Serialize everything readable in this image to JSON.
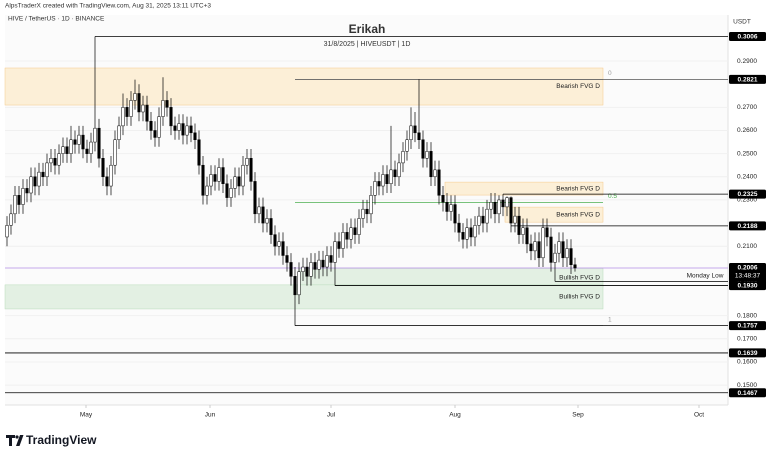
{
  "header": {
    "credit": "AlpsTraderX created with TradingView.com, Aug 31, 2025 13:11 UTC+3",
    "symbol": "HIVE / TetherUS · 1D · BINANCE",
    "currency": "USDT"
  },
  "footer": {
    "brand": "TradingView"
  },
  "chart_data": {
    "type": "candlestick",
    "title": "Erikah",
    "subtitle": "31/8/2025 | HIVEUSDT | 1D",
    "annotation": "Monday Low",
    "up_color": "#ffffff",
    "down_color": "#000000",
    "outline": "#000000",
    "categories": [
      null,
      null,
      null,
      null,
      null,
      null,
      null,
      null,
      null,
      null,
      null,
      null,
      null,
      null,
      null,
      null,
      null,
      null,
      null,
      null,
      null,
      null,
      null,
      null,
      null,
      null,
      null,
      null,
      null,
      null,
      null,
      null,
      null,
      null,
      null,
      null,
      null,
      null,
      null,
      null,
      null,
      null,
      null,
      null,
      null,
      null,
      null,
      null,
      null,
      null,
      null,
      null,
      null,
      null,
      null,
      null,
      null,
      null,
      null,
      null,
      null,
      null,
      null,
      null,
      null,
      null,
      null,
      null,
      null,
      null,
      null,
      null,
      null,
      null,
      null,
      null,
      null,
      null,
      null,
      null,
      null,
      null,
      null,
      null,
      null,
      null,
      null,
      null,
      null,
      null,
      null,
      null,
      null,
      null,
      null,
      null,
      null,
      null,
      null,
      null,
      null,
      null,
      null,
      null,
      null,
      null,
      null,
      null,
      null,
      null,
      null,
      null,
      null,
      null,
      null,
      null,
      null,
      null,
      null,
      null,
      null,
      null,
      null,
      null,
      null,
      null,
      null,
      null,
      null,
      null,
      null,
      null,
      null,
      null,
      null,
      null,
      null,
      null,
      null,
      null,
      null,
      null,
      null
    ],
    "open": [
      0.214,
      0.219,
      0.224,
      0.232,
      0.228,
      0.235,
      0.233,
      0.24,
      0.236,
      0.242,
      0.24,
      0.246,
      0.248,
      0.245,
      0.25,
      0.253,
      0.25,
      0.256,
      0.254,
      0.258,
      0.252,
      0.25,
      0.255,
      0.261,
      0.248,
      0.24,
      0.236,
      0.245,
      0.256,
      0.262,
      0.27,
      0.266,
      0.273,
      0.276,
      0.268,
      0.271,
      0.264,
      0.26,
      0.257,
      0.266,
      0.273,
      0.27,
      0.262,
      0.26,
      0.263,
      0.258,
      0.262,
      0.259,
      0.256,
      0.245,
      0.232,
      0.236,
      0.241,
      0.238,
      0.244,
      0.237,
      0.231,
      0.235,
      0.24,
      0.236,
      0.245,
      0.248,
      0.238,
      0.224,
      0.227,
      0.22,
      0.222,
      0.215,
      0.21,
      0.212,
      0.206,
      0.203,
      0.197,
      0.189,
      0.199,
      0.201,
      0.197,
      0.203,
      0.2,
      0.204,
      0.201,
      0.206,
      0.203,
      0.212,
      0.209,
      0.216,
      0.213,
      0.218,
      0.215,
      0.222,
      0.226,
      0.224,
      0.232,
      0.238,
      0.236,
      0.241,
      0.237,
      0.243,
      0.24,
      0.246,
      0.251,
      0.256,
      0.262,
      0.259,
      0.256,
      0.248,
      0.251,
      0.24,
      0.243,
      0.232,
      0.229,
      0.225,
      0.228,
      0.22,
      0.216,
      0.213,
      0.218,
      0.214,
      0.219,
      0.223,
      0.22,
      0.226,
      0.229,
      0.224,
      0.23,
      0.227,
      0.231,
      0.22,
      0.223,
      0.215,
      0.218,
      0.211,
      0.208,
      0.212,
      0.205,
      0.218,
      0.214,
      0.203,
      0.207,
      0.212,
      0.205,
      0.209,
      0.202
    ],
    "high": [
      0.223,
      0.228,
      0.236,
      0.236,
      0.239,
      0.239,
      0.244,
      0.244,
      0.246,
      0.246,
      0.25,
      0.252,
      0.252,
      0.254,
      0.257,
      0.257,
      0.262,
      0.26,
      0.262,
      0.262,
      0.256,
      0.259,
      0.3006,
      0.265,
      0.252,
      0.244,
      0.249,
      0.26,
      0.266,
      0.276,
      0.274,
      0.277,
      0.282,
      0.28,
      0.275,
      0.275,
      0.268,
      0.264,
      0.27,
      0.283,
      0.277,
      0.274,
      0.266,
      0.267,
      0.267,
      0.266,
      0.266,
      0.263,
      0.26,
      0.249,
      0.24,
      0.245,
      0.245,
      0.248,
      0.248,
      0.241,
      0.239,
      0.244,
      0.244,
      0.249,
      0.252,
      0.252,
      0.242,
      0.231,
      0.231,
      0.226,
      0.226,
      0.219,
      0.216,
      0.216,
      0.21,
      0.207,
      0.201,
      0.203,
      0.205,
      0.205,
      0.207,
      0.207,
      0.208,
      0.208,
      0.21,
      0.21,
      0.216,
      0.216,
      0.22,
      0.22,
      0.222,
      0.222,
      0.226,
      0.23,
      0.23,
      0.236,
      0.242,
      0.242,
      0.245,
      0.245,
      0.262,
      0.247,
      0.25,
      0.255,
      0.26,
      0.27,
      0.268,
      0.2821,
      0.26,
      0.255,
      0.255,
      0.247,
      0.247,
      0.236,
      0.233,
      0.232,
      0.232,
      0.224,
      0.22,
      0.222,
      0.222,
      0.223,
      0.227,
      0.227,
      0.23,
      0.233,
      0.233,
      0.232,
      0.2325,
      0.2315,
      0.2315,
      0.227,
      0.227,
      0.222,
      0.222,
      0.215,
      0.216,
      0.216,
      0.222,
      0.222,
      0.218,
      0.211,
      0.216,
      0.216,
      0.213,
      0.213,
      0.205
    ],
    "low": [
      0.21,
      0.215,
      0.22,
      0.224,
      0.224,
      0.229,
      0.229,
      0.232,
      0.232,
      0.236,
      0.236,
      0.242,
      0.241,
      0.241,
      0.246,
      0.246,
      0.246,
      0.25,
      0.25,
      0.248,
      0.246,
      0.246,
      0.251,
      0.244,
      0.236,
      0.232,
      0.232,
      0.241,
      0.252,
      0.258,
      0.262,
      0.262,
      0.269,
      0.264,
      0.264,
      0.26,
      0.256,
      0.253,
      0.253,
      0.262,
      0.266,
      0.258,
      0.256,
      0.256,
      0.254,
      0.254,
      0.255,
      0.252,
      0.241,
      0.228,
      0.228,
      0.232,
      0.234,
      0.234,
      0.233,
      0.227,
      0.227,
      0.231,
      0.232,
      0.232,
      0.241,
      0.234,
      0.22,
      0.22,
      0.216,
      0.216,
      0.211,
      0.206,
      0.206,
      0.202,
      0.199,
      0.193,
      0.1757,
      0.185,
      0.195,
      0.193,
      0.193,
      0.196,
      0.196,
      0.197,
      0.197,
      0.199,
      0.193,
      0.205,
      0.205,
      0.209,
      0.209,
      0.211,
      0.211,
      0.218,
      0.22,
      0.22,
      0.228,
      0.232,
      0.232,
      0.233,
      0.233,
      0.236,
      0.236,
      0.242,
      0.247,
      0.252,
      0.255,
      0.252,
      0.244,
      0.244,
      0.236,
      0.236,
      0.228,
      0.225,
      0.221,
      0.221,
      0.216,
      0.212,
      0.209,
      0.209,
      0.21,
      0.21,
      0.215,
      0.216,
      0.216,
      0.222,
      0.22,
      0.22,
      0.223,
      0.223,
      0.216,
      0.216,
      0.211,
      0.211,
      0.207,
      0.204,
      0.204,
      0.201,
      0.201,
      0.21,
      0.199,
      0.1948,
      0.203,
      0.201,
      0.201,
      0.198,
      0.199
    ],
    "close": [
      0.219,
      0.224,
      0.232,
      0.228,
      0.235,
      0.233,
      0.24,
      0.236,
      0.242,
      0.24,
      0.246,
      0.248,
      0.245,
      0.25,
      0.253,
      0.25,
      0.256,
      0.254,
      0.258,
      0.252,
      0.25,
      0.255,
      0.261,
      0.248,
      0.24,
      0.236,
      0.245,
      0.256,
      0.262,
      0.27,
      0.266,
      0.273,
      0.276,
      0.268,
      0.271,
      0.264,
      0.26,
      0.257,
      0.266,
      0.273,
      0.27,
      0.262,
      0.26,
      0.263,
      0.258,
      0.262,
      0.259,
      0.256,
      0.245,
      0.232,
      0.236,
      0.241,
      0.238,
      0.244,
      0.237,
      0.231,
      0.235,
      0.24,
      0.236,
      0.245,
      0.248,
      0.238,
      0.224,
      0.227,
      0.22,
      0.222,
      0.215,
      0.21,
      0.212,
      0.206,
      0.203,
      0.197,
      0.189,
      0.199,
      0.201,
      0.197,
      0.203,
      0.2,
      0.204,
      0.201,
      0.206,
      0.203,
      0.212,
      0.209,
      0.216,
      0.213,
      0.218,
      0.215,
      0.222,
      0.226,
      0.224,
      0.232,
      0.238,
      0.236,
      0.241,
      0.237,
      0.243,
      0.24,
      0.246,
      0.251,
      0.256,
      0.262,
      0.259,
      0.256,
      0.248,
      0.251,
      0.24,
      0.243,
      0.232,
      0.229,
      0.225,
      0.228,
      0.22,
      0.216,
      0.213,
      0.218,
      0.214,
      0.219,
      0.223,
      0.22,
      0.226,
      0.229,
      0.224,
      0.23,
      0.227,
      0.231,
      0.22,
      0.223,
      0.215,
      0.218,
      0.211,
      0.208,
      0.212,
      0.205,
      0.218,
      0.214,
      0.203,
      0.207,
      0.212,
      0.205,
      0.209,
      0.202,
      0.2006
    ],
    "xlim": [
      -0.5,
      180.25
    ],
    "xticks": [
      {
        "value": 19.75,
        "label": "May"
      },
      {
        "value": 50.75,
        "label": "Jun"
      },
      {
        "value": 81,
        "label": "Jul"
      },
      {
        "value": 112,
        "label": "Aug"
      },
      {
        "value": 142.75,
        "label": "Sep"
      },
      {
        "value": 173,
        "label": "Oct"
      }
    ],
    "ylim": [
      0.1414,
      0.3099
    ],
    "yticks": [
      {
        "value": 0.29,
        "label": "0.2900"
      },
      {
        "value": 0.27,
        "label": "0.2700"
      },
      {
        "value": 0.26,
        "label": "0.2600"
      },
      {
        "value": 0.25,
        "label": "0.2500"
      },
      {
        "value": 0.24,
        "label": "0.2400"
      },
      {
        "value": 0.23,
        "label": "0.2300"
      },
      {
        "value": 0.21,
        "label": "0.2100"
      },
      {
        "value": 0.18,
        "label": "0.1800"
      },
      {
        "value": 0.17,
        "label": "0.1700"
      },
      {
        "value": 0.16,
        "label": "0.1600"
      },
      {
        "value": 0.15,
        "label": "0.1500"
      }
    ],
    "grid": true,
    "zones": [
      {
        "name": "Bearish FVG D",
        "top": 0.287,
        "bottom": 0.271,
        "start": -0.5,
        "end": 149,
        "color": "#fcefd7",
        "border": "#f5c98a"
      },
      {
        "name": "Bearish FVG D",
        "top": 0.2377,
        "bottom": 0.2321,
        "start": 109.5,
        "end": 149,
        "color": "#fcefd7",
        "border": "#f5c98a"
      },
      {
        "name": "Bearish FVG D",
        "top": 0.2269,
        "bottom": 0.2204,
        "start": 124.5,
        "end": 149,
        "color": "#fcefd7",
        "border": "#f5c98a"
      },
      {
        "name": "Bullish FVG D",
        "top": 0.2005,
        "bottom": 0.1923,
        "start": 73,
        "end": 149,
        "color": "#e3f0e3",
        "border": "#b9dcba"
      },
      {
        "name": "Bullish FVG D",
        "top": 0.1933,
        "bottom": 0.1829,
        "start": -0.5,
        "end": 149,
        "color": "#e3f0e3",
        "border": "#b9dcba"
      }
    ],
    "fib": {
      "start": 72,
      "end": 149,
      "levels": [
        {
          "value": 0.2821,
          "label": "0",
          "color": "#9e9e9e"
        },
        {
          "value": 0.2289,
          "label": "0.5",
          "color": "#4caf50"
        },
        {
          "value": 0.1757,
          "label": "1",
          "color": "#9e9e9e"
        }
      ]
    },
    "levels": [
      {
        "price": 0.3006,
        "start": 22,
        "color": "#000000"
      },
      {
        "price": 0.2821,
        "start": 72,
        "color": "#555555"
      },
      {
        "price": 0.2325,
        "start": 124,
        "color": "#000000"
      },
      {
        "price": 0.2188,
        "start": 126,
        "color": "#000000"
      },
      {
        "price": 0.1948,
        "start": 137,
        "color": "#000000"
      },
      {
        "price": {
          "value": 0.193,
          "label": "0.1930"
        },
        "start": 82,
        "color": "#000000"
      },
      {
        "price": 0.1757,
        "start": 72,
        "color": "#000000"
      },
      {
        "price": 0.1639,
        "start": -0.5,
        "color": "#000000"
      },
      {
        "price": 0.1467,
        "start": -0.5,
        "color": "#000000"
      }
    ],
    "last": {
      "price": 0.2006,
      "countdown": "13:48:37",
      "color": "#b48ce6"
    }
  }
}
